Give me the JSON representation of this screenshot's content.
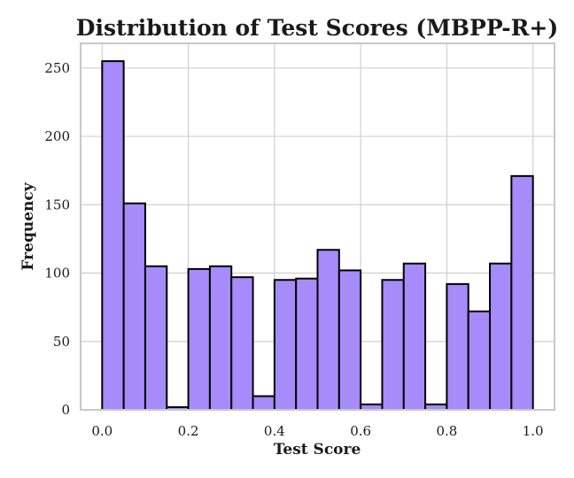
{
  "chart_data": {
    "type": "bar",
    "title": "Distribution of Test Scores (MBPP-R+)",
    "xlabel": "Test Score",
    "ylabel": "Frequency",
    "x_range": [
      -0.05,
      1.05
    ],
    "ylim": [
      0,
      268
    ],
    "x_ticks": [
      {
        "value": 0.0,
        "label": "0.0"
      },
      {
        "value": 0.2,
        "label": "0.2"
      },
      {
        "value": 0.4,
        "label": "0.4"
      },
      {
        "value": 0.6,
        "label": "0.6"
      },
      {
        "value": 0.8,
        "label": "0.8"
      },
      {
        "value": 1.0,
        "label": "1.0"
      }
    ],
    "y_ticks": [
      {
        "value": 0,
        "label": "0"
      },
      {
        "value": 50,
        "label": "50"
      },
      {
        "value": 100,
        "label": "100"
      },
      {
        "value": 150,
        "label": "150"
      },
      {
        "value": 200,
        "label": "200"
      },
      {
        "value": 250,
        "label": "250"
      }
    ],
    "grid": true,
    "bar_color": "#a78bfa",
    "edge_color": "#000000",
    "bin_edges": [
      0.0,
      0.05,
      0.1,
      0.15,
      0.2,
      0.25,
      0.3,
      0.35,
      0.4,
      0.45,
      0.5,
      0.55,
      0.6,
      0.65,
      0.7,
      0.75,
      0.8,
      0.85,
      0.9,
      0.95,
      1.0
    ],
    "values": [
      255,
      151,
      105,
      2,
      103,
      105,
      97,
      10,
      95,
      96,
      117,
      102,
      4,
      95,
      107,
      4,
      92,
      72,
      107,
      171
    ]
  }
}
